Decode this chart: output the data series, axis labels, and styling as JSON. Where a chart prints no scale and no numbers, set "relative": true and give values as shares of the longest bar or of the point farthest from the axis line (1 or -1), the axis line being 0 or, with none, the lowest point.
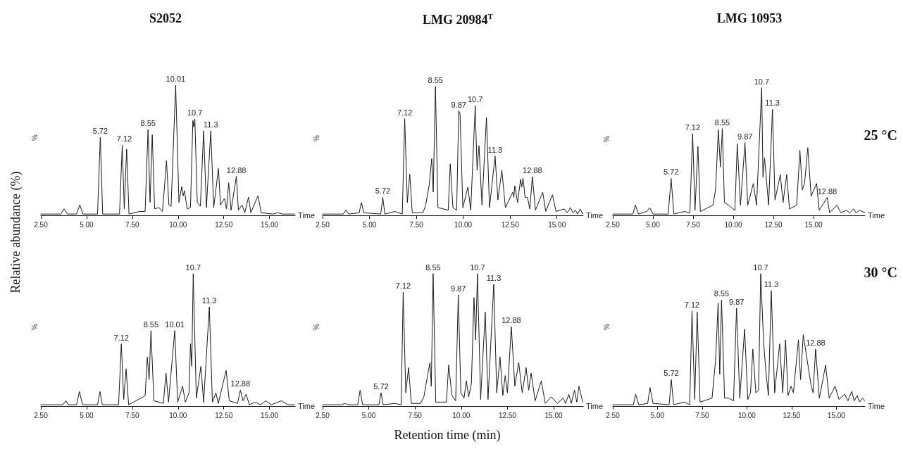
{
  "chart_data": [
    {
      "type": "line",
      "relative": true,
      "title": "S2052",
      "xlabel": "Time",
      "ylabel": "%",
      "color": "#1a1a1a",
      "xlim": [
        2.5,
        16.4
      ],
      "xticks": [
        {
          "value": 2.5,
          "label": "2.50"
        },
        {
          "value": 5,
          "label": "5.00"
        },
        {
          "value": 7.5,
          "label": "7.50"
        },
        {
          "value": 10,
          "label": "10.00"
        },
        {
          "value": 12.5,
          "label": "12.50"
        },
        {
          "value": 15,
          "label": "15.00"
        }
      ],
      "x": [
        2.5,
        3.6,
        3.77,
        3.95,
        4.45,
        4.63,
        4.8,
        5.6,
        5.75,
        5.88,
        6.8,
        6.95,
        7.06,
        7.19,
        7.32,
        7.9,
        8.2,
        8.36,
        8.47,
        8.59,
        8.72,
        8.95,
        9.15,
        9.37,
        9.5,
        9.62,
        9.87,
        10.05,
        10.2,
        10.28,
        10.35,
        10.5,
        10.68,
        10.81,
        10.86,
        10.92,
        11.05,
        11.22,
        11.4,
        11.55,
        11.79,
        11.95,
        12.21,
        12.32,
        12.54,
        12.65,
        12.77,
        12.9,
        13.19,
        13.3,
        13.5,
        13.65,
        13.85,
        13.98,
        14.37,
        14.55,
        15.2,
        15.46,
        15.7,
        16.37
      ],
      "values": [
        0.01,
        0.01,
        0.05,
        0.01,
        0.01,
        0.08,
        0.01,
        0.01,
        0.6,
        0.01,
        0.01,
        0.54,
        0.05,
        0.51,
        0.01,
        0.03,
        0.03,
        0.66,
        0.1,
        0.62,
        0.05,
        0.06,
        0.03,
        0.42,
        0.08,
        0.07,
        1,
        0.1,
        0.22,
        0.15,
        0.19,
        0.05,
        0.06,
        0.73,
        0.68,
        0.74,
        0.1,
        0.07,
        0.65,
        0.06,
        0.65,
        0.06,
        0.36,
        0.08,
        0.13,
        0.05,
        0.25,
        0.04,
        0.3,
        0.04,
        0.08,
        0.02,
        0.14,
        0.02,
        0.15,
        0.02,
        0.01,
        0.02,
        0.01,
        0.01
      ],
      "annotations": [
        {
          "text": "5.72",
          "x": 5.75,
          "y": 0.6
        },
        {
          "text": "7.12",
          "x": 7.06,
          "y": 0.54
        },
        {
          "text": "8.55",
          "x": 8.36,
          "y": 0.66
        },
        {
          "text": "10.01",
          "x": 9.87,
          "y": 1
        },
        {
          "text": "10.7",
          "x": 10.92,
          "y": 0.74
        },
        {
          "text": "11.3",
          "x": 11.79,
          "y": 0.65
        },
        {
          "text": "12.88",
          "x": 13.19,
          "y": 0.3
        }
      ]
    },
    {
      "type": "line",
      "relative": true,
      "title": "LMG 20984$^{T}$",
      "xlabel": "Time",
      "ylabel": "%",
      "color": "#1a1a1a",
      "xlim": [
        2.5,
        16.4
      ],
      "xticks": [
        {
          "value": 2.5,
          "label": "2.50"
        },
        {
          "value": 5,
          "label": "5.00"
        },
        {
          "value": 7.5,
          "label": "7.50"
        },
        {
          "value": 10,
          "label": "10.00"
        },
        {
          "value": 12.5,
          "label": "12.50"
        },
        {
          "value": 15,
          "label": "15.00"
        }
      ],
      "x": [
        2.5,
        3.6,
        3.74,
        3.9,
        4.45,
        4.57,
        4.7,
        5.6,
        5.71,
        5.82,
        6.36,
        6.75,
        6.88,
        7.02,
        7.15,
        7.28,
        7.85,
        8.0,
        8.19,
        8.32,
        8.4,
        8.52,
        8.65,
        9.2,
        9.31,
        9.45,
        9.65,
        9.76,
        9.83,
        9.98,
        10.25,
        10.4,
        10.64,
        10.74,
        10.84,
        11.0,
        11.24,
        11.4,
        11.7,
        11.85,
        12.06,
        12.25,
        12.64,
        12.7,
        12.75,
        12.9,
        13.06,
        13.12,
        13.19,
        13.3,
        13.43,
        13.55,
        13.69,
        13.85,
        14.24,
        14.4,
        14.76,
        14.95,
        15.39,
        15.55,
        15.72,
        15.85,
        15.98,
        16.1,
        16.24,
        16.37
      ],
      "values": [
        0.01,
        0.01,
        0.04,
        0.01,
        0.02,
        0.1,
        0.02,
        0.01,
        0.14,
        0.01,
        0.03,
        0.01,
        0.75,
        0.1,
        0.32,
        0.02,
        0.02,
        0.08,
        0.24,
        0.44,
        0.18,
        1,
        0.06,
        0.04,
        0.4,
        0.06,
        0.04,
        0.81,
        0.79,
        0.06,
        0.22,
        0.04,
        0.85,
        0.35,
        0.54,
        0.08,
        0.76,
        0.06,
        0.46,
        0.12,
        0.35,
        0.06,
        0.18,
        0.14,
        0.23,
        0.1,
        0.28,
        0.22,
        0.29,
        0.14,
        0.14,
        0.05,
        0.3,
        0.04,
        0.18,
        0.03,
        0.16,
        0.03,
        0.05,
        0.02,
        0.06,
        0.02,
        0.04,
        0.01,
        0.05,
        0.01
      ],
      "annotations": [
        {
          "text": "5.72",
          "x": 5.71,
          "y": 0.14
        },
        {
          "text": "7.12",
          "x": 6.88,
          "y": 0.75
        },
        {
          "text": "8.55",
          "x": 8.52,
          "y": 1
        },
        {
          "text": "9.87",
          "x": 9.76,
          "y": 0.81
        },
        {
          "text": "10.7",
          "x": 10.64,
          "y": 0.85
        },
        {
          "text": "11.3",
          "x": 11.7,
          "y": 0.46
        },
        {
          "text": "12.88",
          "x": 13.69,
          "y": 0.3
        }
      ]
    },
    {
      "type": "line",
      "relative": true,
      "title": "LMG 10953",
      "subtitle": "25 °C",
      "xlabel": "Time",
      "ylabel": "%",
      "color": "#1a1a1a",
      "xlim": [
        2.5,
        18.2
      ],
      "xticks": [
        {
          "value": 2.5,
          "label": "2.50"
        },
        {
          "value": 5,
          "label": "5.00"
        },
        {
          "value": 7.5,
          "label": "7.50"
        },
        {
          "value": 10,
          "label": "10.00"
        },
        {
          "value": 12.5,
          "label": "12.50"
        },
        {
          "value": 15,
          "label": "15.00"
        }
      ],
      "x": [
        2.5,
        3.75,
        3.91,
        4.1,
        4.6,
        4.8,
        5.0,
        5.95,
        6.13,
        6.3,
        6.95,
        7.3,
        7.47,
        7.62,
        7.8,
        7.95,
        8.73,
        8.9,
        9.07,
        9.2,
        9.32,
        9.45,
        9.7,
        10.1,
        10.25,
        10.45,
        10.73,
        10.9,
        11.25,
        11.45,
        11.77,
        11.85,
        11.95,
        12.2,
        12.44,
        12.6,
        12.93,
        13.1,
        13.33,
        13.5,
        13.95,
        14.15,
        14.3,
        14.44,
        14.64,
        14.85,
        15.19,
        15.35,
        15.85,
        16.0,
        16.45,
        16.7,
        17.04,
        17.25,
        17.49,
        17.65,
        17.86,
        18.2
      ],
      "values": [
        0.01,
        0.01,
        0.08,
        0.01,
        0.03,
        0.06,
        0.01,
        0.01,
        0.29,
        0.01,
        0.03,
        0.02,
        0.64,
        0.04,
        0.54,
        0.03,
        0.08,
        0.2,
        0.67,
        0.38,
        0.68,
        0.1,
        0.08,
        0.04,
        0.56,
        0.08,
        0.57,
        0.08,
        0.25,
        0.08,
        1,
        0.3,
        0.45,
        0.08,
        0.83,
        0.12,
        0.32,
        0.1,
        0.32,
        0.05,
        0.08,
        0.51,
        0.2,
        0.25,
        0.53,
        0.15,
        0.25,
        0.04,
        0.14,
        0.02,
        0.08,
        0.02,
        0.04,
        0.02,
        0.05,
        0.02,
        0.04,
        0.02
      ],
      "annotations": [
        {
          "text": "5.72",
          "x": 6.13,
          "y": 0.29
        },
        {
          "text": "7.12",
          "x": 7.47,
          "y": 0.64
        },
        {
          "text": "8.55",
          "x": 9.32,
          "y": 0.68
        },
        {
          "text": "9.87",
          "x": 10.73,
          "y": 0.57
        },
        {
          "text": "10.7",
          "x": 11.77,
          "y": 1
        },
        {
          "text": "11.3",
          "x": 12.44,
          "y": 0.83
        },
        {
          "text": "12.88",
          "x": 15.85,
          "y": 0.14
        }
      ]
    },
    {
      "type": "line",
      "relative": true,
      "xlabel": "Time",
      "ylabel": "%",
      "color": "#1a1a1a",
      "xlim": [
        2.5,
        16.4
      ],
      "xticks": [
        {
          "value": 2.5,
          "label": "2.50"
        },
        {
          "value": 5,
          "label": "5.00"
        },
        {
          "value": 7.5,
          "label": "7.50"
        },
        {
          "value": 10,
          "label": "10.00"
        },
        {
          "value": 12.5,
          "label": "12.50"
        },
        {
          "value": 15,
          "label": "15.00"
        }
      ],
      "x": [
        2.5,
        3.7,
        3.87,
        4.0,
        4.45,
        4.61,
        4.78,
        5.6,
        5.73,
        5.86,
        6.75,
        6.9,
        7.03,
        7.16,
        7.3,
        8.1,
        8.2,
        8.32,
        8.42,
        8.52,
        8.68,
        9.2,
        9.34,
        9.48,
        9.82,
        9.98,
        10.25,
        10.4,
        10.6,
        10.68,
        10.75,
        10.83,
        11.0,
        11.25,
        11.4,
        11.71,
        11.88,
        12.07,
        12.2,
        12.63,
        12.8,
        13.25,
        13.41,
        13.55,
        13.72,
        13.9,
        14.22,
        14.5,
        14.8,
        15.1,
        15.65,
        16.0,
        16.37
      ],
      "values": [
        0.01,
        0.01,
        0.04,
        0.01,
        0.01,
        0.11,
        0.01,
        0.01,
        0.11,
        0.01,
        0.01,
        0.47,
        0.05,
        0.28,
        0.01,
        0.07,
        0.08,
        0.37,
        0.2,
        0.57,
        0.04,
        0.02,
        0.25,
        0.03,
        0.57,
        0.03,
        0.15,
        0.03,
        0.1,
        0.47,
        0.3,
        1,
        0.06,
        0.3,
        0.03,
        0.75,
        0.03,
        0.1,
        0.02,
        0.27,
        0.04,
        0.02,
        0.12,
        0.04,
        0.09,
        0.01,
        0.03,
        0.01,
        0.04,
        0.01,
        0.04,
        0.01,
        0.01
      ],
      "annotations": [
        {
          "text": "7.12",
          "x": 6.9,
          "y": 0.47
        },
        {
          "text": "8.55",
          "x": 8.52,
          "y": 0.57
        },
        {
          "text": "10.01",
          "x": 9.82,
          "y": 0.57
        },
        {
          "text": "10.7",
          "x": 10.83,
          "y": 1
        },
        {
          "text": "11.3",
          "x": 11.71,
          "y": 0.75
        },
        {
          "text": "12.88",
          "x": 13.41,
          "y": 0.12
        }
      ]
    },
    {
      "type": "line",
      "relative": true,
      "xlabel": "Time",
      "ylabel": "%",
      "color": "#1a1a1a",
      "xlim": [
        2.5,
        16.6
      ],
      "xticks": [
        {
          "value": 2.5,
          "label": "2.50"
        },
        {
          "value": 5,
          "label": "5.00"
        },
        {
          "value": 7.5,
          "label": "7.50"
        },
        {
          "value": 10,
          "label": "10.00"
        },
        {
          "value": 12.5,
          "label": "12.50"
        },
        {
          "value": 15,
          "label": "15.00"
        }
      ],
      "x": [
        2.5,
        3.55,
        3.7,
        3.85,
        4.4,
        4.53,
        4.66,
        5.55,
        5.66,
        5.78,
        6.42,
        6.75,
        6.86,
        7.0,
        7.15,
        7.3,
        7.8,
        7.98,
        8.19,
        8.31,
        8.38,
        8.48,
        8.62,
        9.2,
        9.32,
        9.5,
        9.7,
        9.84,
        9.98,
        10.15,
        10.28,
        10.4,
        10.55,
        10.69,
        10.78,
        10.88,
        11.05,
        11.3,
        11.45,
        11.76,
        11.92,
        12.1,
        12.25,
        12.38,
        12.5,
        12.71,
        12.9,
        13.11,
        13.3,
        13.51,
        13.65,
        13.78,
        14.0,
        14.33,
        14.55,
        14.87,
        15.2,
        15.51,
        15.65,
        15.82,
        15.95,
        16.13,
        16.25,
        16.37,
        16.57
      ],
      "values": [
        0.01,
        0.01,
        0.02,
        0.01,
        0.01,
        0.12,
        0.01,
        0.01,
        0.1,
        0.01,
        0.02,
        0.01,
        0.86,
        0.1,
        0.29,
        0.02,
        0.02,
        0.07,
        0.24,
        0.33,
        0.15,
        1,
        0.03,
        0.03,
        0.31,
        0.08,
        0.04,
        0.84,
        0.1,
        0.06,
        0.19,
        0.07,
        0.17,
        0.82,
        0.5,
        1,
        0.05,
        0.71,
        0.05,
        0.92,
        0.1,
        0.37,
        0.08,
        0.23,
        0.1,
        0.6,
        0.15,
        0.33,
        0.1,
        0.29,
        0.12,
        0.25,
        0.04,
        0.19,
        0.02,
        0.07,
        0.02,
        0.06,
        0.02,
        0.09,
        0.02,
        0.12,
        0.03,
        0.15,
        0.03
      ],
      "annotations": [
        {
          "text": "5.72",
          "x": 5.66,
          "y": 0.1
        },
        {
          "text": "7.12",
          "x": 6.86,
          "y": 0.86
        },
        {
          "text": "8.55",
          "x": 8.48,
          "y": 1
        },
        {
          "text": "9.87",
          "x": 9.84,
          "y": 0.84
        },
        {
          "text": "10.7",
          "x": 10.88,
          "y": 1
        },
        {
          "text": "11.3",
          "x": 11.76,
          "y": 0.92
        },
        {
          "text": "12.88",
          "x": 12.71,
          "y": 0.6
        }
      ]
    },
    {
      "type": "line",
      "relative": true,
      "subtitle": "30 °C",
      "xlabel": "Time",
      "ylabel": "%",
      "color": "#1a1a1a",
      "xlim": [
        2.5,
        16.6
      ],
      "xticks": [
        {
          "value": 2.5,
          "label": "2.50"
        },
        {
          "value": 5,
          "label": "5.00"
        },
        {
          "value": 7.5,
          "label": "7.50"
        },
        {
          "value": 10,
          "label": "10.00"
        },
        {
          "value": 12.5,
          "label": "12.50"
        },
        {
          "value": 15,
          "label": "15.00"
        }
      ],
      "x": [
        2.5,
        3.65,
        3.78,
        3.95,
        4.45,
        4.58,
        4.75,
        5.65,
        5.77,
        5.9,
        6.51,
        6.8,
        6.93,
        7.08,
        7.22,
        7.38,
        8.05,
        8.25,
        8.39,
        8.48,
        8.58,
        8.75,
        8.98,
        9.25,
        9.42,
        9.6,
        9.87,
        10.05,
        10.2,
        10.33,
        10.5,
        10.65,
        10.77,
        10.93,
        11.06,
        11.2,
        11.36,
        11.55,
        11.83,
        12.0,
        12.16,
        12.3,
        12.46,
        12.6,
        12.88,
        13.0,
        13.15,
        13.31,
        13.57,
        13.7,
        13.84,
        14.05,
        14.4,
        14.6,
        14.93,
        15.15,
        15.46,
        15.65,
        15.86,
        16.0,
        16.16,
        16.3,
        16.46,
        16.59
      ],
      "values": [
        0.01,
        0.01,
        0.09,
        0.01,
        0.02,
        0.14,
        0.02,
        0.01,
        0.2,
        0.01,
        0.03,
        0.01,
        0.72,
        0.05,
        0.71,
        0.03,
        0.06,
        0.35,
        0.78,
        0.24,
        0.8,
        0.06,
        0.06,
        0.04,
        0.74,
        0.06,
        0.58,
        0.05,
        0.1,
        0.43,
        0.1,
        0.12,
        1,
        0.49,
        0.26,
        0.08,
        0.87,
        0.1,
        0.47,
        0.1,
        0.5,
        0.08,
        0.15,
        0.1,
        0.5,
        0.2,
        0.54,
        0.4,
        0.17,
        0.1,
        0.43,
        0.06,
        0.31,
        0.06,
        0.15,
        0.05,
        0.09,
        0.04,
        0.11,
        0.04,
        0.08,
        0.03,
        0.06,
        0.04
      ],
      "annotations": [
        {
          "text": "5.72",
          "x": 5.77,
          "y": 0.2
        },
        {
          "text": "7.12",
          "x": 6.93,
          "y": 0.72
        },
        {
          "text": "8.55",
          "x": 8.58,
          "y": 0.8
        },
        {
          "text": "9.87",
          "x": 9.42,
          "y": 0.74
        },
        {
          "text": "10.7",
          "x": 10.77,
          "y": 1
        },
        {
          "text": "11.3",
          "x": 11.36,
          "y": 0.87
        },
        {
          "text": "12.88",
          "x": 13.84,
          "y": 0.43
        }
      ]
    },
    {
      "type": "other",
      "xlabel": "Retention time (min)",
      "ylabel": "Relative abundance (%)"
    }
  ]
}
